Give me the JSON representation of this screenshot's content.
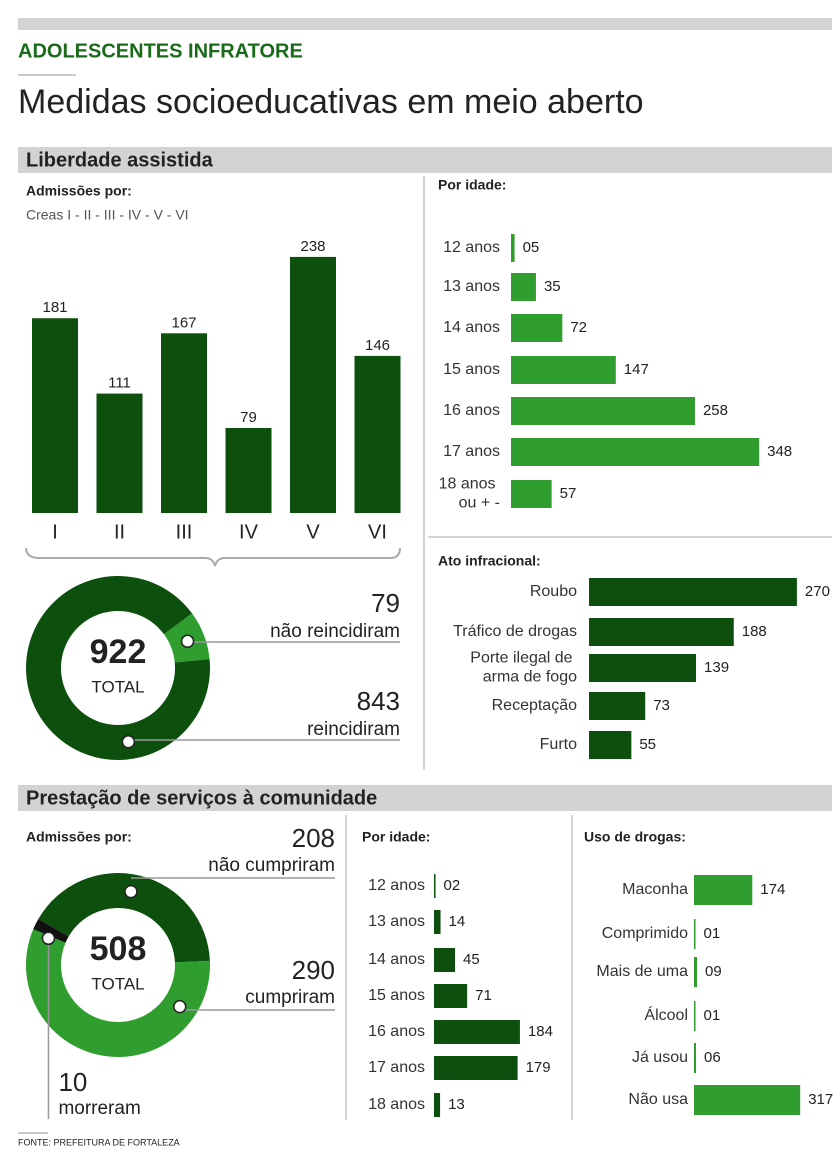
{
  "header": {
    "kicker": "ADOLESCENTES INFRATORE",
    "title": "Medidas socioeducativas em meio aberto"
  },
  "sections": [
    "Liberdade assistida",
    "Prestação de serviços à comunidade"
  ],
  "source": "FONTE: PREFEITURA DE FORTALEZA",
  "chart_data": [
    {
      "type": "bar",
      "title": "Admissões por:",
      "subtitle": "Creas I - II - III -  IV -  V -  VI",
      "categories": [
        "I",
        "II",
        "III",
        "IV",
        "V",
        "VI"
      ],
      "values": [
        181,
        111,
        167,
        79,
        238,
        146
      ],
      "color": "#0d4f0d"
    },
    {
      "type": "pie",
      "donut": true,
      "total": 922,
      "total_label": "TOTAL",
      "categories": [
        "não reincidiram",
        "reincidiram"
      ],
      "values": [
        79,
        843
      ],
      "colors": [
        "#2f9e2f",
        "#0d4f0d"
      ]
    },
    {
      "type": "bar",
      "orientation": "horizontal",
      "title": "Por idade:",
      "categories": [
        "12 anos",
        "13 anos",
        "14 anos",
        "15 anos",
        "16 anos",
        "17 anos",
        "18 anos ou + -"
      ],
      "values": [
        5,
        35,
        72,
        147,
        258,
        348,
        57
      ],
      "value_labels": [
        "05",
        "35",
        "72",
        "147",
        "258",
        "348",
        "57"
      ],
      "color": "#2f9e2f"
    },
    {
      "type": "bar",
      "orientation": "horizontal",
      "title": "Ato infracional:",
      "categories": [
        "Roubo",
        "Tráfico de drogas",
        "Porte ilegal de arma de fogo",
        "Receptação",
        "Furto"
      ],
      "values": [
        270,
        188,
        139,
        73,
        55
      ],
      "color": "#0d4f0d"
    },
    {
      "type": "pie",
      "donut": true,
      "title": "Admissões por:",
      "total": 508,
      "total_label": "TOTAL",
      "categories": [
        "não cumpriram",
        "cumpriram",
        "morreram"
      ],
      "values": [
        208,
        290,
        10
      ],
      "colors": [
        "#0d4f0d",
        "#2f9e2f",
        "#111111"
      ]
    },
    {
      "type": "bar",
      "orientation": "horizontal",
      "title": "Por idade:",
      "categories": [
        "12 anos",
        "13 anos",
        "14 anos",
        "15 anos",
        "16 anos",
        "17 anos",
        "18 anos"
      ],
      "values": [
        2,
        14,
        45,
        71,
        184,
        179,
        13
      ],
      "value_labels": [
        "02",
        "14",
        "45",
        "71",
        "184",
        "179",
        "13"
      ],
      "color": "#0d4f0d"
    },
    {
      "type": "bar",
      "orientation": "horizontal",
      "title": "Uso de drogas:",
      "categories": [
        "Maconha",
        "Comprimido",
        "Mais de uma",
        "Álcool",
        "Já usou",
        "Não usa"
      ],
      "values": [
        174,
        1,
        9,
        1,
        6,
        317
      ],
      "value_labels": [
        "174",
        "01",
        "09",
        "01",
        "06",
        "317"
      ],
      "color": "#2f9e2f"
    }
  ]
}
